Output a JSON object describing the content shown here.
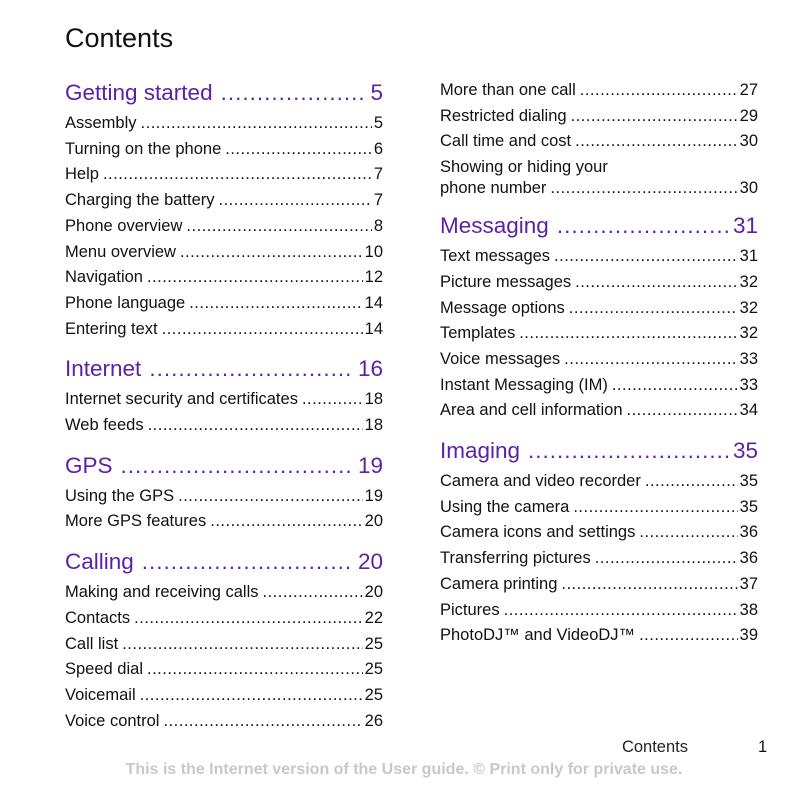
{
  "page_title": "Contents",
  "accent_color": "#5b1fa8",
  "left_column": [
    {
      "section": "Getting started",
      "page": "5",
      "entries": [
        {
          "title": "Assembly",
          "page": "5"
        },
        {
          "title": "Turning on the phone",
          "page": "6"
        },
        {
          "title": "Help",
          "page": "7"
        },
        {
          "title": "Charging the battery",
          "page": "7"
        },
        {
          "title": "Phone overview",
          "page": "8"
        },
        {
          "title": "Menu overview",
          "page": "10"
        },
        {
          "title": "Navigation",
          "page": "12"
        },
        {
          "title": "Phone language",
          "page": "14"
        },
        {
          "title": "Entering text",
          "page": "14"
        }
      ]
    },
    {
      "section": "Internet",
      "page": "16",
      "entries": [
        {
          "title": "Internet security and certificates",
          "page": "18"
        },
        {
          "title": "Web feeds",
          "page": "18"
        }
      ]
    },
    {
      "section": "GPS",
      "page": "19",
      "entries": [
        {
          "title": "Using the GPS",
          "page": "19"
        },
        {
          "title": "More GPS features",
          "page": "20"
        }
      ]
    },
    {
      "section": "Calling",
      "page": "20",
      "entries": [
        {
          "title": "Making and receiving calls",
          "page": "20"
        },
        {
          "title": "Contacts",
          "page": "22"
        },
        {
          "title": "Call list",
          "page": "25"
        },
        {
          "title": "Speed dial",
          "page": "25"
        },
        {
          "title": "Voicemail",
          "page": "25"
        },
        {
          "title": "Voice control",
          "page": "26"
        }
      ]
    }
  ],
  "right_column": {
    "continued_entries": [
      {
        "title": "More than one call",
        "page": "27"
      },
      {
        "title": "Restricted dialing",
        "page": "29"
      },
      {
        "title": "Call time and cost",
        "page": "30"
      }
    ],
    "multiline_entry": {
      "line1": "Showing or hiding your",
      "line2": "phone number",
      "page": "30"
    },
    "sections": [
      {
        "section": "Messaging",
        "page": "31",
        "entries": [
          {
            "title": "Text messages",
            "page": "31"
          },
          {
            "title": "Picture messages",
            "page": "32"
          },
          {
            "title": "Message options",
            "page": "32"
          },
          {
            "title": "Templates",
            "page": "32"
          },
          {
            "title": "Voice messages",
            "page": "33"
          },
          {
            "title": "Instant Messaging (IM)",
            "page": "33"
          },
          {
            "title": "Area and cell information",
            "page": "34"
          }
        ]
      },
      {
        "section": "Imaging",
        "page": "35",
        "entries": [
          {
            "title": "Camera and video recorder",
            "page": "35"
          },
          {
            "title": "Using the camera",
            "page": "35"
          },
          {
            "title": "Camera icons and settings",
            "page": "36"
          },
          {
            "title": "Transferring pictures",
            "page": "36"
          },
          {
            "title": "Camera printing",
            "page": "37"
          },
          {
            "title": "Pictures",
            "page": "38"
          },
          {
            "title": "PhotoDJ™ and VideoDJ™",
            "page": "39"
          }
        ]
      }
    ]
  },
  "footer": {
    "label": "Contents",
    "page_number": "1",
    "notice": "This is the Internet version of the User guide. © Print only for private use."
  }
}
